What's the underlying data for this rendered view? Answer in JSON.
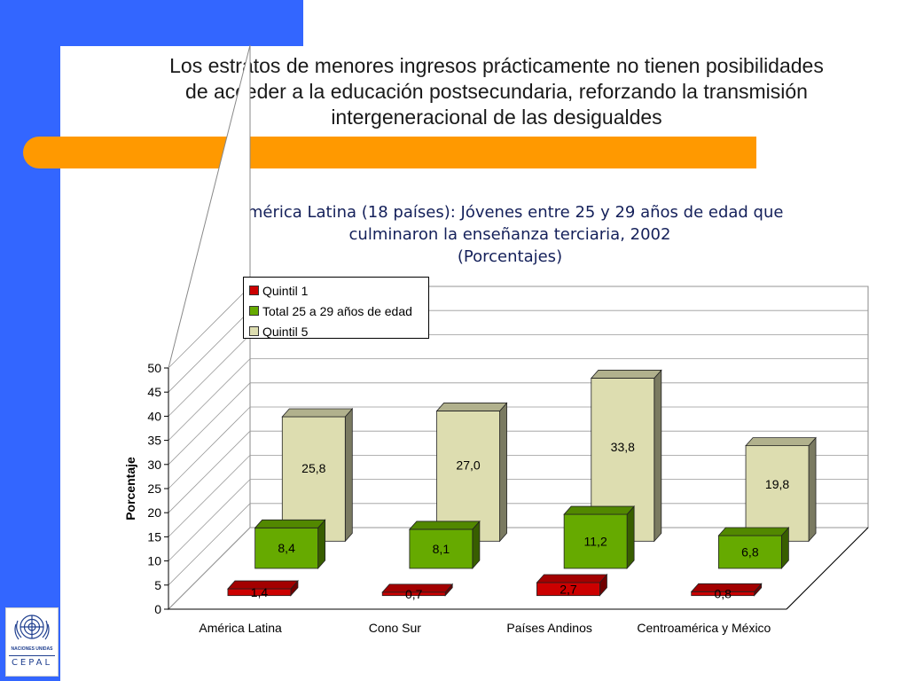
{
  "slide": {
    "title_lines": [
      "Los estratos de menores ingresos prácticamente no tienen posibilidades",
      "de acceder a la educación postsecundaria, reforzando la transmisión",
      "intergeneracional de las desigualdes"
    ],
    "colors": {
      "side": "#3366ff",
      "orange": "#ff9900"
    },
    "logo": {
      "caption": "NACIONES UNIDAS",
      "name": "CEPAL",
      "icon": "un-emblem-icon"
    }
  },
  "chart_data": {
    "type": "bar",
    "title_lines": [
      "América Latina (18 países): Jóvenes entre 25 y 29 años de edad que",
      "culminaron la enseñanza terciaria, 2002",
      "(Porcentajes)"
    ],
    "categories": [
      "América Latina",
      "Cono Sur",
      "Países Andinos",
      "Centroamérica y México"
    ],
    "series": [
      {
        "name": "Quintil 1",
        "values": [
          1.4,
          0.7,
          2.7,
          0.8
        ],
        "labels": [
          "1,4",
          "0,7",
          "2,7",
          "0,8"
        ],
        "color": "#cc0000"
      },
      {
        "name": "Total 25 a 29 años de edad",
        "values": [
          8.4,
          8.1,
          11.2,
          6.8
        ],
        "labels": [
          "8,4",
          "8,1",
          "11,2",
          "6,8"
        ],
        "color": "#66aa00"
      },
      {
        "name": "Quintil 5",
        "values": [
          25.8,
          27.0,
          33.8,
          19.8
        ],
        "labels": [
          "25,8",
          "27,0",
          "33,8",
          "19,8"
        ],
        "color": "#ddddb0"
      }
    ],
    "ylabel": "Porcentaje",
    "xlabel": "",
    "ylim": [
      0,
      50
    ],
    "yticks": [
      0,
      5,
      10,
      15,
      20,
      25,
      30,
      35,
      40,
      45,
      50
    ],
    "grid": true,
    "legend_position": "top-left",
    "style": "3d"
  }
}
